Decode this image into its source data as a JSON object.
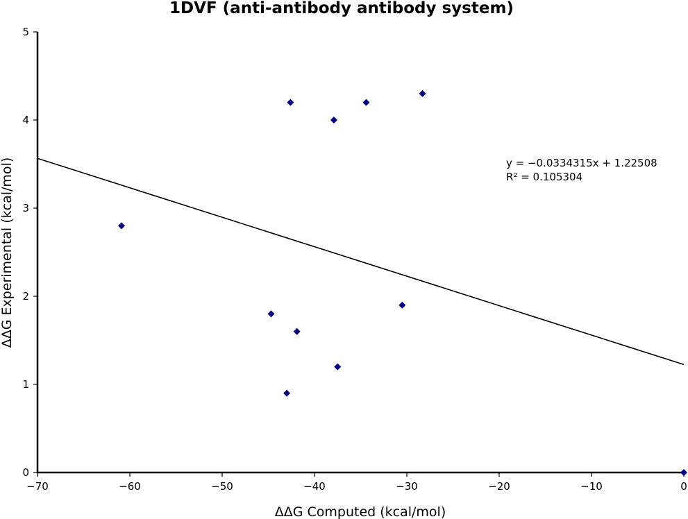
{
  "chart_data": {
    "type": "scatter",
    "title": "1DVF (anti-antibody antibody system)",
    "xlabel": "ΔΔG Computed (kcal/mol)",
    "ylabel": "ΔΔG Experimental (kcal/mol)",
    "xlim": [
      -70,
      0
    ],
    "ylim": [
      0,
      5
    ],
    "x_ticks": [
      -70,
      -60,
      -50,
      -40,
      -30,
      -20,
      -10,
      0
    ],
    "y_ticks": [
      0,
      1,
      2,
      3,
      4,
      5
    ],
    "x_tick_labels": [
      "−70",
      "−60",
      "−50",
      "−40",
      "−30",
      "−20",
      "−10",
      "0"
    ],
    "y_tick_labels": [
      "0",
      "1",
      "2",
      "3",
      "4",
      "5"
    ],
    "grid": false,
    "marker": "diamond",
    "marker_color": "#00007f",
    "points": [
      {
        "x": -60.9,
        "y": 2.8
      },
      {
        "x": -44.7,
        "y": 1.8
      },
      {
        "x": -43.0,
        "y": 0.9
      },
      {
        "x": -42.6,
        "y": 4.2
      },
      {
        "x": -41.9,
        "y": 1.6
      },
      {
        "x": -37.9,
        "y": 4.0
      },
      {
        "x": -37.5,
        "y": 1.2
      },
      {
        "x": -34.4,
        "y": 4.2
      },
      {
        "x": -30.5,
        "y": 1.9
      },
      {
        "x": -28.3,
        "y": 4.3
      },
      {
        "x": 0.0,
        "y": 0.0
      }
    ],
    "fit_line": {
      "slope": -0.0334315,
      "intercept": 1.22508,
      "color": "#000000",
      "equation_text": "y = −0.0334315x + 1.22508",
      "r2_text": "R² = 0.105304"
    }
  }
}
